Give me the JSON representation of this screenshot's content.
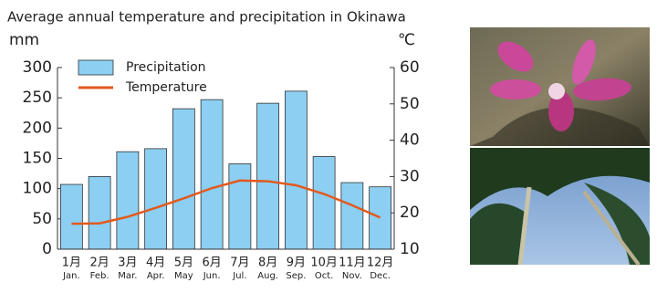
{
  "chart_data": {
    "type": "bar_line",
    "title": "Average annual temperature and precipitation in Okinawa",
    "y_label": "mm",
    "y2_label": "℃",
    "categories": [
      [
        "1月",
        "Jan."
      ],
      [
        "2月",
        "Feb."
      ],
      [
        "3月",
        "Mar."
      ],
      [
        "4月",
        "Apr."
      ],
      [
        "5月",
        "May"
      ],
      [
        "6月",
        "Jun."
      ],
      [
        "7月",
        "Jul."
      ],
      [
        "8月",
        "Aug."
      ],
      [
        "9月",
        "Sep."
      ],
      [
        "10月",
        "Oct."
      ],
      [
        "11月",
        "Nov."
      ],
      [
        "12月",
        "Dec."
      ]
    ],
    "series": [
      {
        "name": "Precipitation",
        "type": "bar",
        "color": "#8ccff2",
        "values": [
          107,
          120,
          161,
          166,
          232,
          247,
          141,
          241,
          261,
          153,
          110,
          103
        ]
      },
      {
        "name": "Temperature",
        "type": "line",
        "axis": "y2",
        "color": "#e2591d",
        "values": [
          17.0,
          17.1,
          18.9,
          21.4,
          24.0,
          26.8,
          28.9,
          28.7,
          27.6,
          25.2,
          22.1,
          18.7
        ]
      }
    ],
    "ylim": [
      0,
      300
    ],
    "yticks": [
      0,
      50,
      100,
      150,
      200,
      250,
      300
    ],
    "y2lim": [
      10,
      60
    ],
    "y2ticks": [
      10,
      20,
      30,
      40,
      50,
      60
    ],
    "legend": "upper left"
  }
}
